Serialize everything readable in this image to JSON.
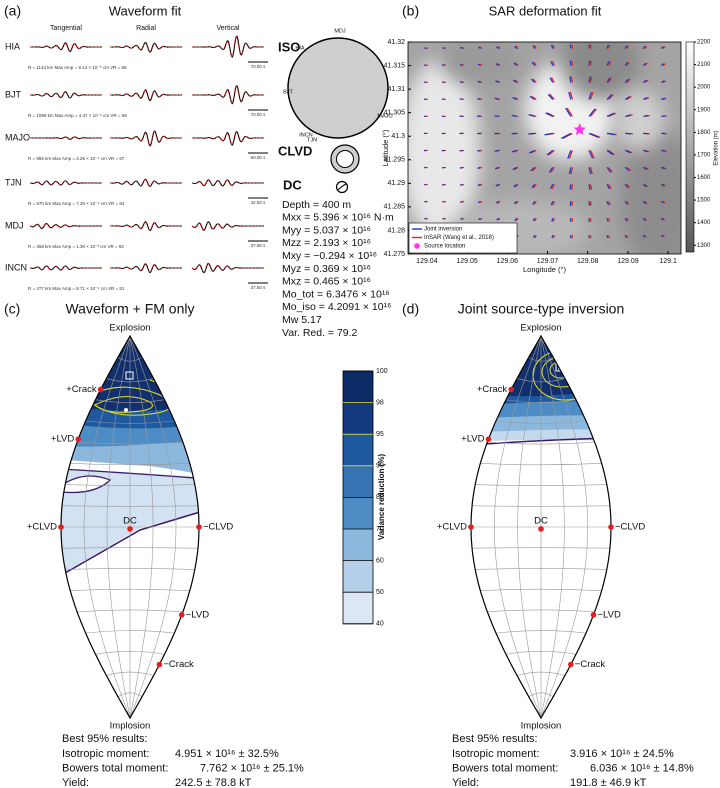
{
  "panels": {
    "a": {
      "label": "(a)",
      "title": "Waveform fit",
      "components": [
        "Tangential",
        "Radial",
        "Vertical"
      ],
      "stations": [
        {
          "name": "HIA",
          "info": "R = 1143 km   Max Amp = 8.14 × 10⁻⁵ cm   VR = 68",
          "scale": "70.00 s"
        },
        {
          "name": "BJT",
          "info": "R = 1099 km   Max Amp = 4.47 × 10⁻⁵ cm   VR = 69",
          "scale": "70.00 s"
        },
        {
          "name": "MAJO",
          "info": "R = 955 km   Max Amp = 2.26 × 10⁻⁴ cm   VR = 87",
          "scale": "60.00 s"
        },
        {
          "name": "TJN",
          "info": "R = 570 km   Max Amp = 7.20 × 10⁻⁴ cm   VR = 84",
          "scale": "42.50 s"
        },
        {
          "name": "MDJ",
          "info": "R = 368 km   Max Amp = 1.30 × 10⁻³ cm   VR = 92",
          "scale": "37.50 s"
        },
        {
          "name": "INCN",
          "info": "R = 477 km   Max Amp = 8.71 × 10⁻⁴ cm   VR = 81",
          "scale": "37.50 s"
        }
      ],
      "mechanisms": [
        "ISO",
        "CLVD",
        "DC"
      ],
      "ball_stations": [
        "MDJ",
        "HIA",
        "BJT",
        "INCN",
        "TJN",
        "MAJO"
      ],
      "solution": [
        "Depth = 400 m",
        "Mxx = 5.396 × 10¹⁶ N·m",
        "Myy = 5.037 × 10¹⁶",
        "Mzz = 2.193 × 10¹⁶",
        "Mxy = −0.294 × 10¹⁶",
        "Myz = 0.369 × 10¹⁶",
        "Mxz = 0.465 × 10¹⁶",
        "Mo_tot = 6.3476 × 10¹⁶",
        "Mo_iso = 4.2091 × 10¹⁶",
        "Mw 5.17",
        "Var. Red. = 79.2"
      ]
    },
    "b": {
      "label": "(b)",
      "title": "SAR deformation fit",
      "xlabel": "Longitude (°)",
      "ylabel": "Latitude (°)",
      "xlim": [
        129.0353,
        129.1032
      ],
      "ylim": [
        41.275,
        41.32
      ],
      "xticks": [
        129.04,
        129.05,
        129.06,
        129.07,
        129.08,
        129.09,
        129.1
      ],
      "yticks": [
        41.275,
        41.28,
        41.285,
        41.29,
        41.295,
        41.3,
        41.305,
        41.31,
        41.315,
        41.32
      ],
      "colorbar_label": "Elevation (m)",
      "colorbar_lim": [
        1270,
        2200
      ],
      "colorbar_ticks": [
        1300,
        1400,
        1500,
        1600,
        1700,
        1800,
        1900,
        2000,
        2100,
        2200
      ],
      "legend": [
        "Joint inversion",
        "InSAR (Wang et al., 2018)",
        "Source location"
      ]
    },
    "c": {
      "label": "(c)",
      "title": "Waveform + FM only",
      "lune_labels": [
        "Explosion",
        "+Crack",
        "+LVD",
        "+CLVD",
        "DC",
        "−CLVD",
        "−LVD",
        "−Crack",
        "Implosion"
      ],
      "results_title": "Best 95% results:",
      "results": [
        [
          "Isotropic moment:",
          "4.951 × 10¹⁶ ± 32.5%"
        ],
        [
          "Bowers total moment:",
          "7.762 × 10¹⁶ ± 25.1%"
        ],
        [
          "Yield:",
          "242.5 ± 78.8 kT"
        ]
      ],
      "colorbar_label": "Variance reduction (%)",
      "colorbar_ticks": [
        100,
        98,
        95,
        90,
        80,
        70,
        60,
        50,
        40
      ]
    },
    "d": {
      "label": "(d)",
      "title": "Joint source-type inversion",
      "lune_labels": [
        "Explosion",
        "+Crack",
        "+LVD",
        "+CLVD",
        "DC",
        "−CLVD",
        "−LVD",
        "−Crack",
        "Implosion"
      ],
      "results_title": "Best 95% results:",
      "results": [
        [
          "Isotropic moment:",
          "3.916 × 10¹⁶ ± 24.5%"
        ],
        [
          "Bowers total moment:",
          "6.036 × 10¹⁶ ± 14.8%"
        ],
        [
          "Yield:",
          "191.8 ± 46.9 kT"
        ]
      ]
    }
  }
}
